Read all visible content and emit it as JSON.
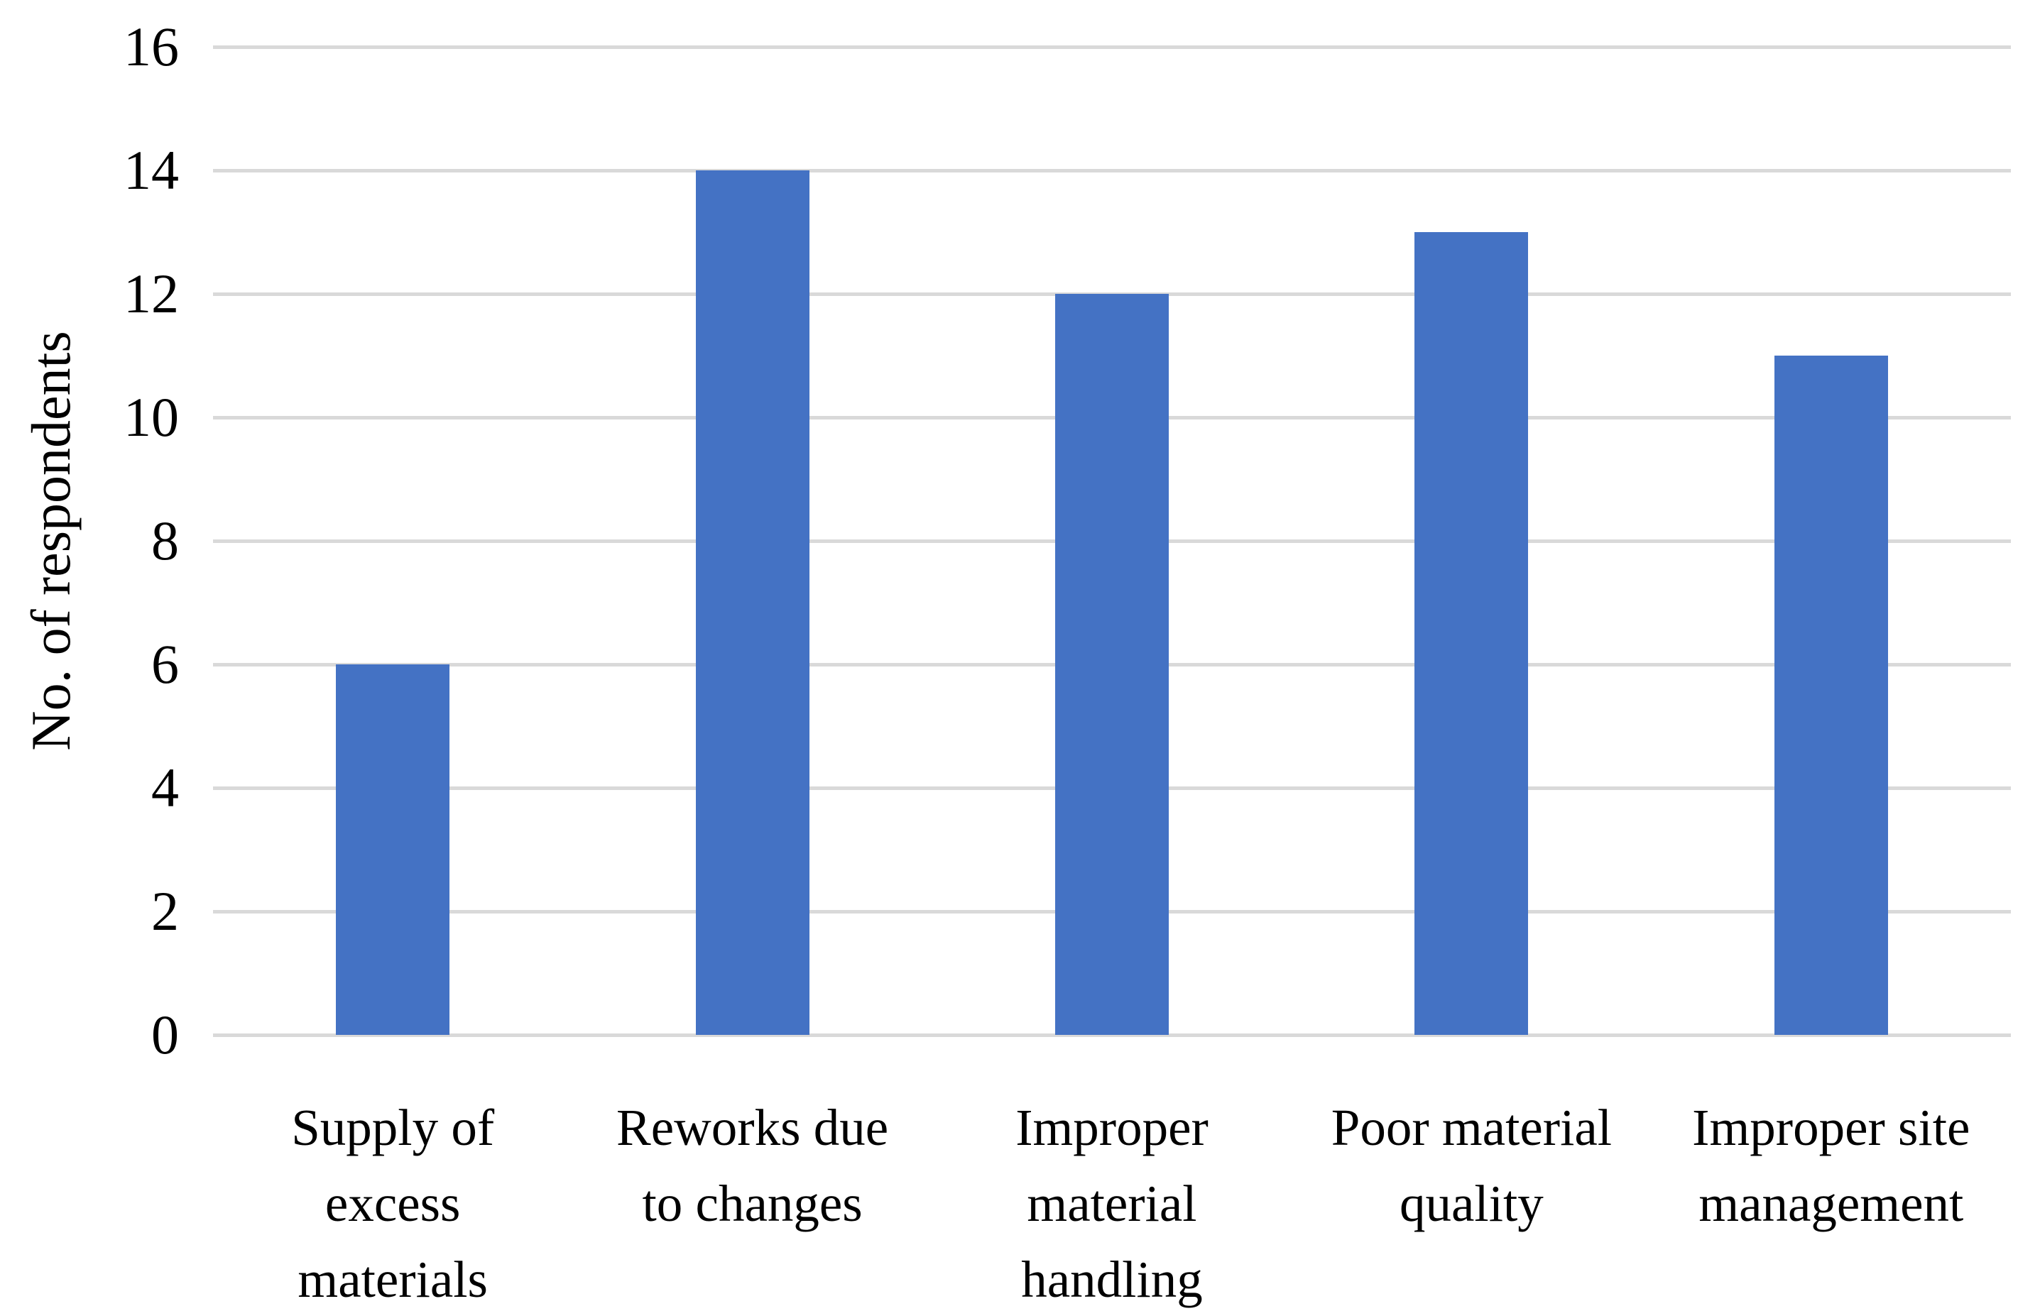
{
  "figure": {
    "background": "#ffffff"
  },
  "chart_data": {
    "type": "bar",
    "categories": [
      "Supply of\nexcess\nmaterials",
      "Reworks due\nto changes",
      "Improper\nmaterial\nhandling",
      "Poor material\nquality",
      "Improper site\nmanagement"
    ],
    "values": [
      6,
      14,
      12,
      13,
      11
    ],
    "title": "",
    "xlabel": "",
    "ylabel": "No. of respondents",
    "ylim": [
      0,
      16
    ],
    "yticks": [
      0,
      2,
      4,
      6,
      8,
      10,
      12,
      14,
      16
    ],
    "grid": true,
    "legend": false,
    "bar_color": "#4472C4",
    "gridline_color": "#D9D9D9",
    "text_color": "#000000"
  }
}
